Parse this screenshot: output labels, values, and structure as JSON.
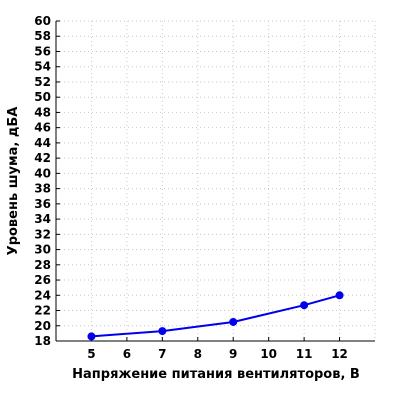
{
  "chart_data": {
    "type": "line",
    "title": "",
    "xlabel": "Напряжение питания вентиляторов, В",
    "ylabel": "Уровень шума, дБА",
    "xlim": [
      4,
      13
    ],
    "ylim": [
      18,
      60
    ],
    "x_ticks": [
      5,
      6,
      7,
      8,
      9,
      10,
      11,
      12
    ],
    "y_ticks": [
      18,
      20,
      22,
      24,
      26,
      28,
      30,
      32,
      34,
      36,
      38,
      40,
      42,
      44,
      46,
      48,
      50,
      52,
      54,
      56,
      58,
      60
    ],
    "grid": true,
    "series": [
      {
        "color": "#0000ee",
        "x": [
          5,
          7,
          9,
          11,
          12
        ],
        "y": [
          18.6,
          19.3,
          20.5,
          22.7,
          24.0
        ]
      }
    ]
  }
}
